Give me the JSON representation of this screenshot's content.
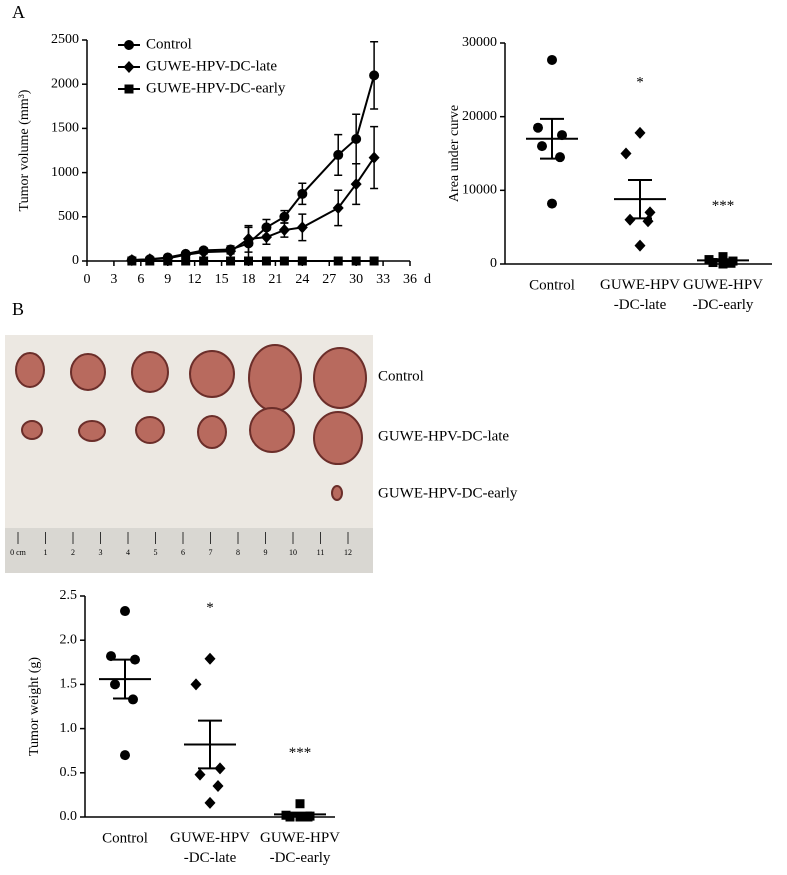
{
  "panel_labels": [
    "A",
    "B"
  ],
  "chart_data": [
    {
      "type": "line",
      "ylabel": "Tumor volume (mm³)",
      "xlabel": "d",
      "x": [
        5,
        7,
        9,
        11,
        13,
        16,
        18,
        20,
        22,
        24,
        28,
        30,
        32
      ],
      "series": [
        {
          "name": "Control",
          "color": "#000000",
          "marker": "circle",
          "values": [
            10,
            20,
            40,
            80,
            120,
            130,
            200,
            380,
            500,
            760,
            1200,
            1380,
            2100
          ],
          "errors": [
            10,
            10,
            15,
            20,
            30,
            40,
            180,
            90,
            70,
            120,
            230,
            280,
            380
          ]
        },
        {
          "name": "GUWE-HPV-DC-late",
          "color": "#000000",
          "marker": "diamond",
          "values": [
            10,
            20,
            30,
            70,
            100,
            110,
            250,
            270,
            350,
            380,
            600,
            870,
            1170
          ],
          "errors": [
            5,
            5,
            10,
            15,
            20,
            30,
            150,
            80,
            80,
            150,
            200,
            230,
            350
          ]
        },
        {
          "name": "GUWE-HPV-DC-early",
          "color": "#000000",
          "marker": "square",
          "values": [
            0,
            0,
            0,
            0,
            0,
            0,
            0,
            0,
            0,
            0,
            0,
            0,
            0
          ],
          "errors": [
            0,
            0,
            0,
            0,
            0,
            0,
            0,
            0,
            0,
            0,
            0,
            0,
            0
          ]
        }
      ],
      "xlim": [
        0,
        36
      ],
      "xticks": [
        0,
        3,
        6,
        9,
        12,
        15,
        18,
        21,
        24,
        27,
        30,
        33,
        36
      ],
      "ylim": [
        0,
        2500
      ],
      "yticks": [
        0,
        500,
        1000,
        1500,
        2000,
        2500
      ],
      "legend": "upper left"
    },
    {
      "type": "dot",
      "ylabel": "Area under curve",
      "categories": [
        "Control",
        "GUWE-HPV\n-DC-late",
        "GUWE-HPV\n-DC-early"
      ],
      "markers": [
        "circle",
        "diamond",
        "square"
      ],
      "color": "#000000",
      "points": [
        [
          27700,
          18500,
          17500,
          16000,
          14500,
          8200
        ],
        [
          17800,
          15000,
          7000,
          6000,
          5800,
          2500
        ],
        [
          1000,
          600,
          400,
          200,
          100,
          0
        ]
      ],
      "mean": [
        17000,
        8800,
        500
      ],
      "sem": [
        2700,
        2600,
        150
      ],
      "annotations": [
        {
          "category": 1,
          "text": "*"
        },
        {
          "category": 2,
          "text": "***"
        }
      ],
      "ylim": [
        0,
        30000
      ],
      "yticks": [
        0,
        10000,
        20000,
        30000
      ]
    },
    {
      "type": "dot",
      "ylabel": "Tumor weight (g)",
      "categories": [
        "Control",
        "GUWE-HPV\n-DC-late",
        "GUWE-HPV\n-DC-early"
      ],
      "markers": [
        "circle",
        "diamond",
        "square"
      ],
      "color": "#000000",
      "points": [
        [
          2.33,
          1.82,
          1.78,
          1.5,
          1.33,
          0.7
        ],
        [
          1.79,
          1.5,
          0.55,
          0.48,
          0.35,
          0.16
        ],
        [
          0.15,
          0.02,
          0.01,
          0,
          0,
          0
        ]
      ],
      "mean": [
        1.56,
        0.82,
        0.03
      ],
      "sem": [
        0.22,
        0.27,
        0.02
      ],
      "annotations": [
        {
          "category": 1,
          "text": "*"
        },
        {
          "category": 2,
          "text": "***"
        }
      ],
      "ylim": [
        0,
        2.5
      ],
      "yticks": [
        {
          "value": 0,
          "label": "0.0"
        },
        0.5,
        {
          "value": 1,
          "label": "1.0"
        },
        1.5,
        {
          "value": 2,
          "label": "2.0"
        },
        2.5
      ]
    }
  ],
  "photo": {
    "row_labels": [
      "Control",
      "GUWE-HPV-DC-late",
      "GUWE-HPV-DC-early"
    ],
    "ruler_labels": [
      "0 cm",
      "1",
      "2",
      "3",
      "4",
      "5",
      "6",
      "7",
      "8",
      "9",
      "10",
      "11",
      "12"
    ]
  }
}
